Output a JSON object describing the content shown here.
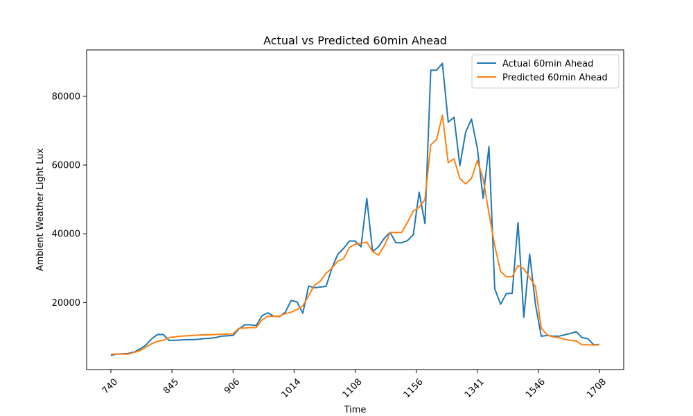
{
  "chart_data": {
    "type": "line",
    "title": "Actual vs Predicted 60min Ahead",
    "xlabel": "Time",
    "ylabel": "Ambient Weather Light Lux",
    "x_tick_labels": [
      "740",
      "845",
      "906",
      "1014",
      "1108",
      "1156",
      "1341",
      "1546",
      "1708"
    ],
    "y_ticks": [
      20000,
      40000,
      60000,
      80000
    ],
    "y_tick_labels": [
      "20000",
      "40000",
      "60000",
      "80000"
    ],
    "ylim": [
      500,
      93500
    ],
    "legend_position": "top-right",
    "grid": false,
    "colors": {
      "actual": "#1f77b4",
      "predicted": "#ff7f0e"
    },
    "series": [
      {
        "name": "Actual 60min Ahead",
        "values": [
          4600,
          5000,
          5100,
          5200,
          5600,
          6500,
          7600,
          9400,
          10700,
          10700,
          9000,
          9000,
          9100,
          9200,
          9200,
          9300,
          9500,
          9600,
          9800,
          10200,
          10300,
          10400,
          12300,
          13500,
          13500,
          13300,
          16200,
          17000,
          16000,
          15900,
          17200,
          20600,
          20200,
          16900,
          24800,
          24300,
          24500,
          24700,
          30000,
          34000,
          35700,
          37900,
          37900,
          36200,
          50300,
          34800,
          36200,
          38700,
          40400,
          37400,
          37400,
          38000,
          39800,
          52100,
          43000,
          87600,
          87600,
          89600,
          72500,
          73900,
          59800,
          69600,
          73400,
          65000,
          50300,
          65400,
          24000,
          19500,
          22600,
          22700,
          43300,
          15700,
          34100,
          19400,
          10200,
          10400,
          10200,
          10200,
          10600,
          11000,
          11500,
          9800,
          9500,
          7700,
          7800
        ]
      },
      {
        "name": "Predicted 60min Ahead",
        "values": [
          5000,
          5000,
          5000,
          5000,
          5500,
          6000,
          7000,
          8000,
          8700,
          9000,
          9800,
          10000,
          10200,
          10300,
          10400,
          10500,
          10600,
          10600,
          10700,
          10800,
          10800,
          10900,
          12500,
          12600,
          12700,
          12700,
          15000,
          16000,
          16000,
          16000,
          16800,
          17200,
          18000,
          19000,
          22000,
          25000,
          26200,
          28500,
          30000,
          32000,
          32700,
          36000,
          37000,
          37200,
          37600,
          34800,
          33800,
          36500,
          40400,
          40400,
          40400,
          43400,
          46600,
          47700,
          50000,
          65900,
          67400,
          74500,
          60700,
          61800,
          56100,
          54500,
          56100,
          61300,
          56100,
          46000,
          36500,
          29000,
          27500,
          27500,
          30800,
          29800,
          27300,
          24600,
          12500,
          10600,
          10000,
          9800,
          9300,
          9000,
          8800,
          7700,
          7700,
          7600,
          7700
        ]
      }
    ]
  }
}
